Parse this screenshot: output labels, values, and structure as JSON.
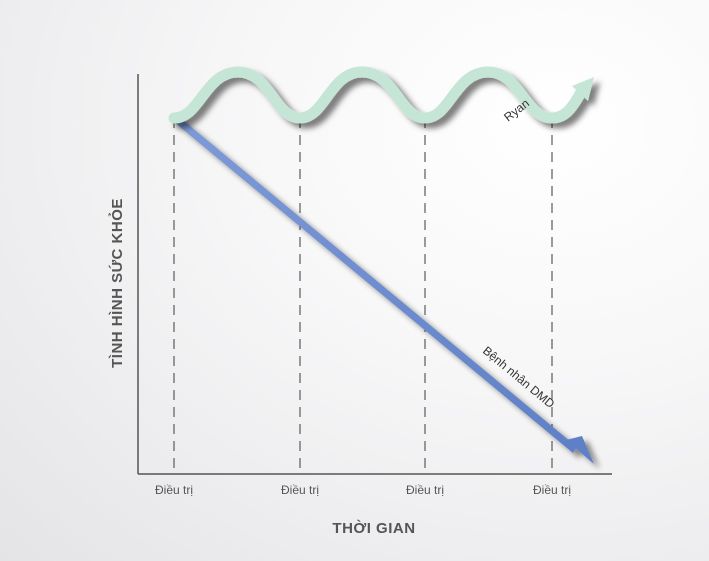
{
  "diagram": {
    "y_axis_title": "TÌNH HÌNH SỨC KHỎE",
    "x_axis_title": "THỜI GIAN",
    "treatment_labels": [
      "Điều trị",
      "Điều trị",
      "Điều trị",
      "Điều trị"
    ],
    "series": [
      {
        "label": "Ryan",
        "trend": "stable-oscillating",
        "color": "#c5e6d6"
      },
      {
        "label": "Bệnh nhân DMD",
        "trend": "declining",
        "color": "#6f8fd1"
      }
    ],
    "axis_color": "#555555"
  }
}
